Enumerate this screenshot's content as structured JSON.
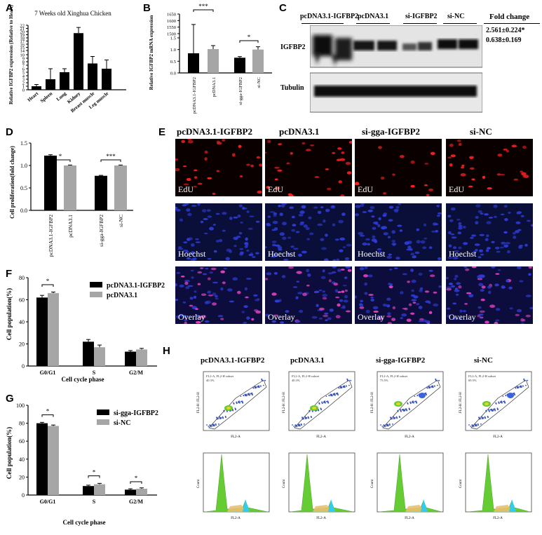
{
  "panels": [
    "A",
    "B",
    "C",
    "D",
    "E",
    "F",
    "G",
    "H"
  ],
  "colors": {
    "black_bar": "#000000",
    "gray_bar": "#a6a6a6",
    "red_stain": "#ff2020",
    "blue_stain": "#2e3bd6",
    "magenta_overlay": "#e040c0",
    "flow_green": "#66cc33",
    "flow_cyan": "#33ccee"
  },
  "chart_data": [
    {
      "panel": "A",
      "type": "bar",
      "title": "7 Weeks old Xinghua Chicken",
      "ylabel": "Relative IGFBP2 expression (Relative to Heart)",
      "categories": [
        "Heart",
        "Spleen",
        "Lung",
        "Kidney",
        "Breast muscle",
        "Leg muscle"
      ],
      "values": [
        1.0,
        3.0,
        5.0,
        19.5,
        7.5,
        6.0
      ],
      "errors": [
        0.5,
        3.0,
        1.0,
        1.8,
        2.0,
        2.5
      ],
      "yticks": [
        "0",
        "1",
        "2",
        "3",
        "4",
        "5",
        "6",
        "7",
        "8",
        "9",
        "10",
        "14",
        "15",
        "16",
        "17",
        "18",
        "19",
        "20",
        "21",
        "22"
      ],
      "ylim": [
        0,
        22
      ],
      "axis_break": [
        10,
        14
      ]
    },
    {
      "panel": "B",
      "type": "bar",
      "ylabel": "Relative IGFBP2 mRNA expression",
      "categories": [
        "pcDNA3.1-IGFBP2",
        "pcDNA3.1",
        "si-gga-IGFBP2",
        "si-NC"
      ],
      "values": [
        1350,
        1.02,
        0.65,
        1.0
      ],
      "errors": [
        220,
        0.15,
        0.05,
        0.12
      ],
      "yticks": [
        "0.0",
        "0.5",
        "1.0",
        "1.5",
        "1500",
        "1550",
        "1600",
        "1650"
      ],
      "axis_break": [
        1.5,
        1500
      ],
      "significance": [
        "***",
        "*"
      ]
    },
    {
      "panel": "D",
      "type": "bar",
      "ylabel": "Cell proliferation(fold change)",
      "categories": [
        "pcDNA3.1-IGFBP2",
        "pcDNA3.1",
        "si-gga-IGFBP2",
        "si-NC"
      ],
      "values": [
        1.22,
        1.0,
        0.77,
        1.0
      ],
      "errors": [
        0.02,
        0.01,
        0.01,
        0.01
      ],
      "yticks": [
        "0.0",
        "0.5",
        "1.0",
        "1.5"
      ],
      "ylim": [
        0,
        1.5
      ],
      "significance": [
        "*",
        "***"
      ]
    },
    {
      "panel": "F",
      "type": "bar",
      "ylabel": "Cell population(%)",
      "xlabel": "Cell cycle phase",
      "categories": [
        "G0/G1",
        "S",
        "G2/M"
      ],
      "series": [
        {
          "name": "pcDNA3.1-IGFBP2",
          "values": [
            62,
            22,
            13
          ],
          "errors": [
            2,
            2,
            1
          ]
        },
        {
          "name": "pcDNA3.1",
          "values": [
            66,
            17,
            15
          ],
          "errors": [
            1,
            2,
            1
          ]
        }
      ],
      "yticks": [
        "0",
        "20",
        "40",
        "60",
        "80"
      ],
      "ylim": [
        0,
        80
      ],
      "significance": [
        "*"
      ]
    },
    {
      "panel": "G",
      "type": "bar",
      "ylabel": "Cell population(%)",
      "xlabel": "Cell cycle phase",
      "categories": [
        "G0/G1",
        "S",
        "G2/M"
      ],
      "series": [
        {
          "name": "si-gga-IGFBP2",
          "values": [
            80,
            10,
            6
          ],
          "errors": [
            1,
            1,
            1
          ]
        },
        {
          "name": "si-NC",
          "values": [
            77,
            12,
            7
          ],
          "errors": [
            1,
            1,
            1
          ]
        }
      ],
      "yticks": [
        "0",
        "20",
        "40",
        "60",
        "80",
        "100"
      ],
      "ylim": [
        0,
        100
      ],
      "significance": [
        "*",
        "*",
        "*"
      ]
    }
  ],
  "western": {
    "lanes": [
      "pcDNA3.1-IGFBP2",
      "pcDNA3.1",
      "si-IGFBP2",
      "si-NC"
    ],
    "rows": [
      "IGFBP2",
      "Tubulin"
    ],
    "fold_header": "Fold change",
    "fold_values": [
      "2.561±0.224*",
      "0.638±0.169"
    ]
  },
  "edu": {
    "columns": [
      "pcDNA3.1-IGFBP2",
      "pcDNA3.1",
      "si-gga-IGFBP2",
      "si-NC"
    ],
    "rows": [
      "EdU",
      "Hoechst",
      "Overlay"
    ]
  },
  "flow": {
    "columns": [
      "pcDNA3.1-IGFBP2",
      "pcDNA3.1",
      "si-gga-IGFBP2",
      "si-NC"
    ],
    "gate_label": "FL2-A, FL2-H subset",
    "gate_percent": [
      "40.3%",
      "40.3%",
      "75.5%",
      "69.5%"
    ],
    "x_axis": "FL2-A",
    "y_axis_scatter": "FL2-H: FL2-H",
    "y_axis_hist": "Count",
    "x_ticks": [
      "0",
      "100K",
      "200K",
      "300K",
      "400K"
    ]
  }
}
